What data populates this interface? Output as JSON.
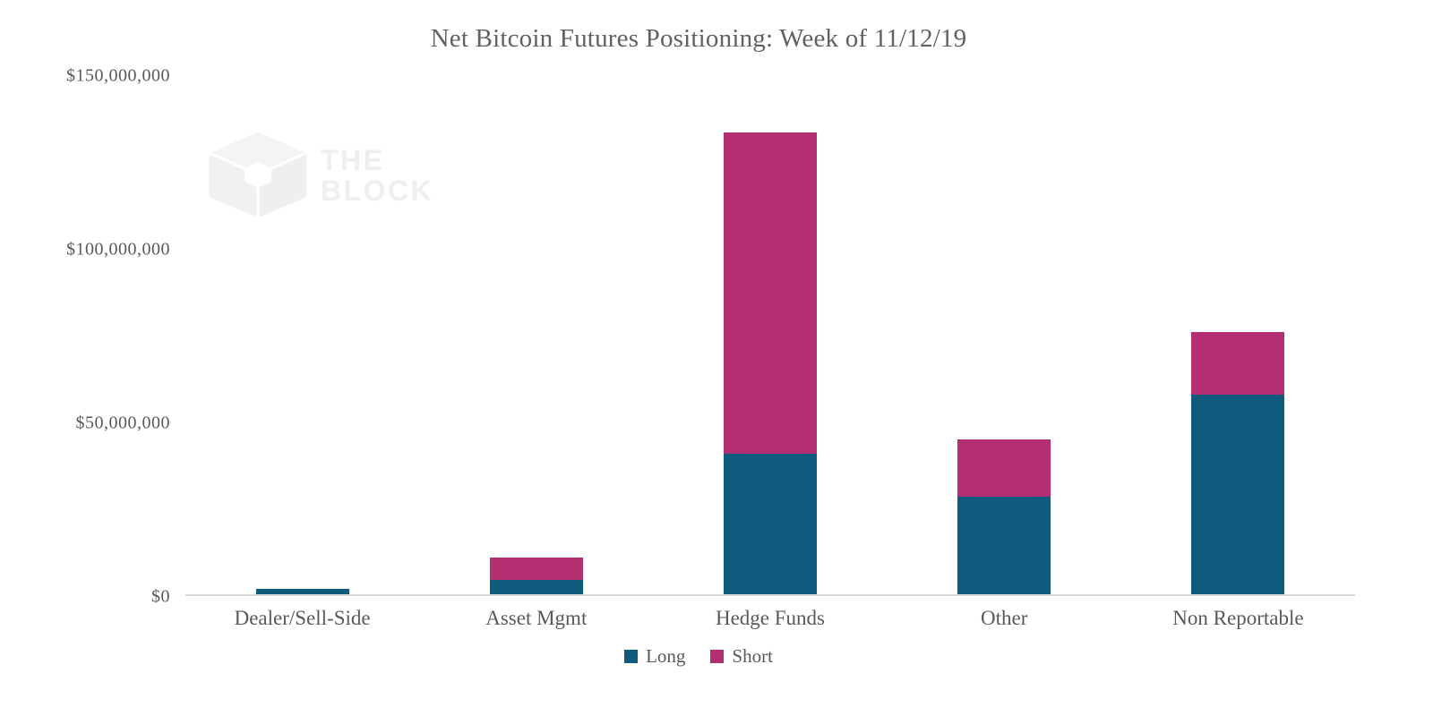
{
  "watermark": {
    "line1": "THE",
    "line2": "BLOCK"
  },
  "chart_data": {
    "type": "bar",
    "stacked": true,
    "title": "Net Bitcoin Futures Positioning: Week of 11/12/19",
    "categories": [
      "Dealer/Sell-Side",
      "Asset Mgmt",
      "Hedge Funds",
      "Other",
      "Non Reportable"
    ],
    "series": [
      {
        "name": "Long",
        "color": "#0F5B7E",
        "values": [
          1500000,
          4000000,
          40500000,
          28000000,
          57500000
        ]
      },
      {
        "name": "Short",
        "color": "#B42E72",
        "values": [
          0,
          6500000,
          92500000,
          16500000,
          18000000
        ]
      }
    ],
    "xlabel": "",
    "ylabel": "",
    "ylim": [
      0,
      150000000
    ],
    "yticks": [
      {
        "value": 0,
        "label": "$0"
      },
      {
        "value": 50000000,
        "label": "$50,000,000"
      },
      {
        "value": 100000000,
        "label": "$100,000,000"
      },
      {
        "value": 150000000,
        "label": "$150,000,000"
      }
    ],
    "grid": false,
    "legend_position": "bottom"
  },
  "style_colors": {
    "long": "#0F5B7E",
    "short": "#B42E72",
    "axis_line": "#D9D9D9",
    "text": "#595959",
    "background": "#FFFFFF",
    "watermark": "#EFEFEF"
  }
}
